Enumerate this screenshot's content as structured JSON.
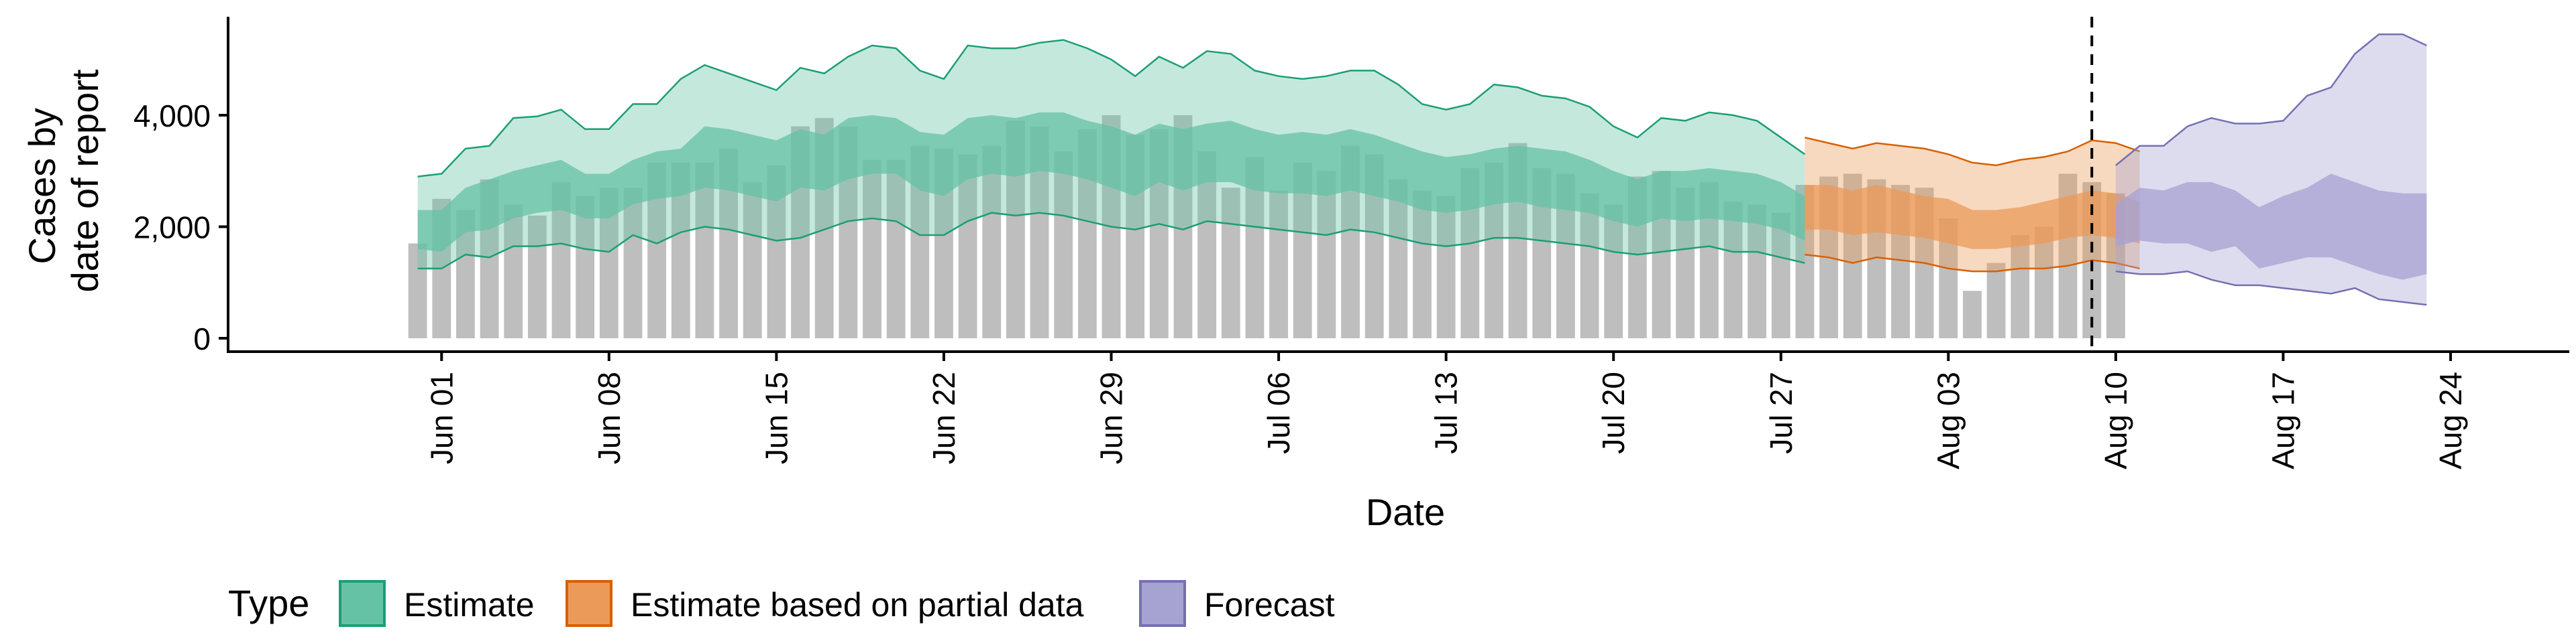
{
  "chart_data": {
    "type": "bar",
    "xlabel": "Date",
    "ylabel_lines": [
      "Cases by",
      "date of report"
    ],
    "ylim": [
      0,
      5800
    ],
    "y_ticks": [
      0,
      2000,
      4000
    ],
    "y_tick_labels": [
      "0",
      "2,000",
      "4,000"
    ],
    "x_range": [
      "2020-05-27",
      "2020-08-27"
    ],
    "x_ticks": [
      "2020-06-01",
      "2020-06-08",
      "2020-06-15",
      "2020-06-22",
      "2020-06-29",
      "2020-07-06",
      "2020-07-13",
      "2020-07-20",
      "2020-07-27",
      "2020-08-03",
      "2020-08-10",
      "2020-08-17",
      "2020-08-24"
    ],
    "x_tick_labels": [
      "Jun 01",
      "Jun 08",
      "Jun 15",
      "Jun 22",
      "Jun 29",
      "Jul 06",
      "Jul 13",
      "Jul 20",
      "Jul 27",
      "Aug 03",
      "Aug 10",
      "Aug 17",
      "Aug 24"
    ],
    "reference_line": "2020-08-09",
    "legend": {
      "title": "Type",
      "position": "bottom",
      "entries": [
        {
          "label": "Estimate",
          "fill": "#66c2a5",
          "stroke": "#1b9e77"
        },
        {
          "label": "Estimate based on partial data",
          "fill": "#eb9a5a",
          "stroke": "#d95f02"
        },
        {
          "label": "Forecast",
          "fill": "#a6a2d2",
          "stroke": "#7570b3"
        }
      ]
    },
    "bars": {
      "color": "#bebebe",
      "start": "2020-05-31",
      "values": [
        1700,
        2500,
        2300,
        2850,
        2400,
        2200,
        2800,
        2550,
        2700,
        2700,
        3150,
        3150,
        3150,
        3400,
        2800,
        3100,
        3800,
        3950,
        3800,
        3200,
        3200,
        3450,
        3400,
        3300,
        3450,
        3900,
        3800,
        3350,
        3750,
        4000,
        3650,
        3750,
        4000,
        3350,
        2700,
        3250,
        2650,
        3150,
        3000,
        3450,
        3300,
        2850,
        2650,
        2550,
        3050,
        3150,
        3500,
        3050,
        2950,
        2600,
        2400,
        2900,
        3000,
        2700,
        2800,
        2450,
        2400,
        2250,
        2750,
        2900,
        2950,
        2850,
        2750,
        2700,
        2150,
        850,
        1350,
        1850,
        2000,
        2950,
        2800,
        2600
      ]
    },
    "series": [
      {
        "type": "Estimate",
        "start": "2020-05-31",
        "outer_upper": [
          2900,
          2950,
          3400,
          3450,
          3950,
          3980,
          4100,
          3750,
          3750,
          4200,
          4200,
          4650,
          4900,
          4750,
          4600,
          4450,
          4850,
          4750,
          5050,
          5250,
          5200,
          4800,
          4650,
          5250,
          5200,
          5200,
          5300,
          5350,
          5200,
          5000,
          4700,
          5050,
          4850,
          5150,
          5100,
          4800,
          4700,
          4650,
          4700,
          4800,
          4800,
          4550,
          4200,
          4100,
          4200,
          4550,
          4500,
          4350,
          4300,
          4150,
          3800,
          3600,
          3950,
          3900,
          4050,
          4000,
          3900,
          3600,
          3300
        ],
        "inner_upper": [
          2300,
          2300,
          2700,
          2850,
          3000,
          3100,
          3200,
          2950,
          2950,
          3200,
          3350,
          3400,
          3800,
          3750,
          3650,
          3550,
          3750,
          3650,
          3950,
          4000,
          3950,
          3700,
          3650,
          3950,
          4000,
          3950,
          4050,
          4050,
          3900,
          3800,
          3650,
          3850,
          3750,
          3850,
          3900,
          3750,
          3650,
          3700,
          3650,
          3750,
          3650,
          3500,
          3350,
          3250,
          3300,
          3400,
          3450,
          3400,
          3350,
          3200,
          3000,
          2850,
          3000,
          3000,
          3050,
          3000,
          2950,
          2800,
          2550
        ],
        "inner_lower": [
          1600,
          1550,
          1900,
          1950,
          2150,
          2250,
          2300,
          2150,
          2150,
          2400,
          2500,
          2550,
          2700,
          2650,
          2550,
          2450,
          2700,
          2650,
          2850,
          2950,
          2950,
          2650,
          2550,
          2850,
          2950,
          2900,
          3000,
          2950,
          2850,
          2700,
          2550,
          2800,
          2650,
          2800,
          2800,
          2650,
          2600,
          2600,
          2550,
          2650,
          2550,
          2450,
          2300,
          2250,
          2300,
          2400,
          2450,
          2350,
          2300,
          2250,
          2100,
          2000,
          2150,
          2100,
          2150,
          2100,
          2050,
          1950,
          1750
        ],
        "outer_lower": [
          1250,
          1250,
          1500,
          1450,
          1650,
          1650,
          1700,
          1600,
          1550,
          1850,
          1700,
          1900,
          2000,
          1950,
          1850,
          1750,
          1800,
          1950,
          2100,
          2150,
          2100,
          1850,
          1850,
          2100,
          2250,
          2200,
          2250,
          2200,
          2100,
          2000,
          1950,
          2050,
          1950,
          2100,
          2050,
          2000,
          1950,
          1900,
          1850,
          1950,
          1900,
          1800,
          1700,
          1650,
          1700,
          1800,
          1800,
          1750,
          1700,
          1650,
          1550,
          1500,
          1550,
          1600,
          1650,
          1550,
          1550,
          1450,
          1350
        ]
      },
      {
        "type": "Estimate based on partial data",
        "start": "2020-07-28",
        "outer_upper": [
          3600,
          3500,
          3400,
          3500,
          3450,
          3400,
          3300,
          3150,
          3100,
          3200,
          3250,
          3350,
          3550,
          3500,
          3350
        ],
        "inner_upper": [
          2750,
          2750,
          2650,
          2750,
          2650,
          2550,
          2500,
          2300,
          2300,
          2350,
          2450,
          2550,
          2650,
          2600,
          2450
        ],
        "inner_lower": [
          1950,
          1950,
          1850,
          1900,
          1850,
          1800,
          1700,
          1600,
          1600,
          1650,
          1700,
          1800,
          1850,
          1800,
          1700
        ],
        "outer_lower": [
          1500,
          1450,
          1350,
          1450,
          1400,
          1350,
          1250,
          1200,
          1200,
          1250,
          1250,
          1300,
          1400,
          1350,
          1250
        ]
      },
      {
        "type": "Forecast",
        "start": "2020-08-10",
        "outer_upper": [
          3100,
          3450,
          3450,
          3800,
          3950,
          3850,
          3850,
          3900,
          4350,
          4500,
          5100,
          5450,
          5450,
          5250
        ],
        "inner_upper": [
          2400,
          2700,
          2650,
          2800,
          2800,
          2650,
          2350,
          2550,
          2700,
          2950,
          2800,
          2650,
          2600,
          2600
        ],
        "inner_lower": [
          1650,
          1750,
          1700,
          1700,
          1550,
          1650,
          1250,
          1350,
          1450,
          1450,
          1300,
          1150,
          1050,
          1150
        ],
        "outer_lower": [
          1200,
          1150,
          1150,
          1200,
          1050,
          950,
          950,
          900,
          850,
          800,
          900,
          700,
          650,
          600
        ]
      }
    ]
  }
}
